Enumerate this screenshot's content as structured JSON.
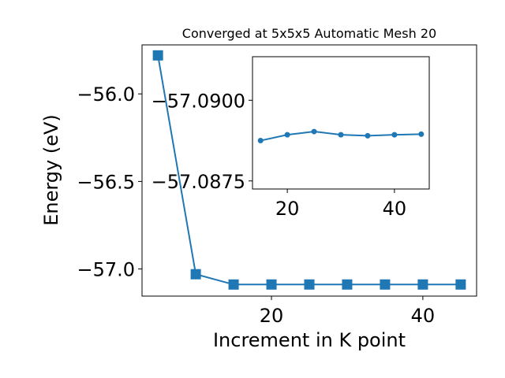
{
  "chart_data": [
    {
      "type": "line",
      "title": "Converged at 5x5x5 Automatic Mesh 20",
      "xlabel": "Increment in K point",
      "ylabel": "Energy (eV)",
      "xlim": [
        2.9,
        47.1
      ],
      "ylim": [
        -57.155,
        -55.72
      ],
      "xticks": [
        20,
        40
      ],
      "xtick_labels": [
        "20",
        "40"
      ],
      "yticks": [
        -57.0,
        -56.5,
        -56.0
      ],
      "ytick_labels": [
        "−57.0",
        "−56.5",
        "−56.0"
      ],
      "grid": false,
      "series": [
        {
          "marker": "square",
          "color": "#1f77b4",
          "x": [
            5,
            10,
            15,
            20,
            25,
            30,
            35,
            40,
            45
          ],
          "y": [
            -55.78,
            -57.03,
            -57.0888,
            -57.0887,
            -57.0886,
            -57.0887,
            -57.0887,
            -57.0887,
            -57.0887
          ]
        }
      ]
    },
    {
      "type": "line",
      "title": "",
      "xlabel": "",
      "ylabel": "",
      "xlim": [
        13.5,
        46.5
      ],
      "ylim": [
        -57.08725,
        -57.09135
      ],
      "xticks": [
        20,
        40
      ],
      "xtick_labels": [
        "20",
        "40"
      ],
      "yticks": [
        -57.0875,
        -57.09
      ],
      "ytick_labels": [
        "−57.0875",
        "−57.0900"
      ],
      "grid": false,
      "series": [
        {
          "marker": "circle",
          "color": "#1f77b4",
          "x": [
            15,
            20,
            25,
            30,
            35,
            40,
            45
          ],
          "y": [
            -57.08875,
            -57.08893,
            -57.08903,
            -57.08893,
            -57.0889,
            -57.08893,
            -57.08895
          ]
        }
      ]
    }
  ]
}
